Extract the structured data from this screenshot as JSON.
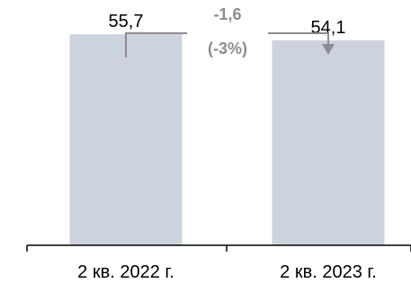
{
  "chart_data": {
    "type": "bar",
    "categories": [
      "2 кв. 2022 г.",
      "2 кв. 2023 г."
    ],
    "values": [
      55.7,
      54.1
    ],
    "value_labels": [
      "55,7",
      "54,1"
    ],
    "title": "",
    "xlabel": "",
    "ylabel": "",
    "ylim": [
      0,
      60
    ],
    "change": {
      "value": "-1,6",
      "percent": "(-3%)"
    },
    "grid": false,
    "legend": "none"
  },
  "colors": {
    "bar": "#cdd3de",
    "change": "#8c8c8c",
    "text": "#000000",
    "axis": "#000000"
  }
}
